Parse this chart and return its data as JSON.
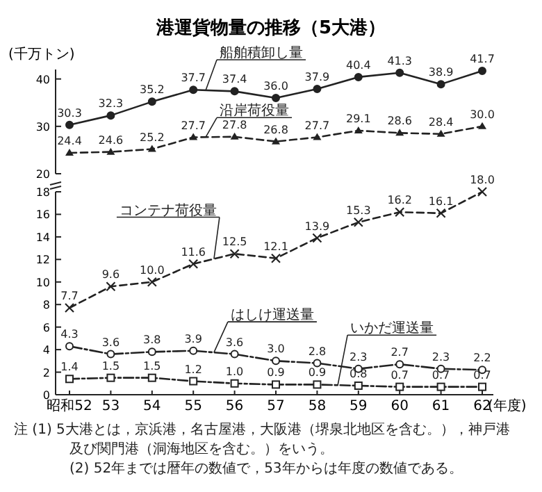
{
  "chart_data": [
    {
      "type": "line",
      "title": "港運貨物量の推移（5大港）",
      "ylabel": "(千万トン)",
      "categories": [
        null,
        null,
        null,
        null,
        null,
        null,
        null,
        null,
        null,
        null,
        null
      ],
      "ylim": [
        20,
        42
      ],
      "yticks": [
        20,
        30,
        40
      ],
      "tick_labels": "y",
      "series": [
        {
          "name": "船舶積卸し量",
          "color": "#222222",
          "marker": "circle",
          "line_style": "solid",
          "values": [
            30.3,
            32.3,
            35.2,
            37.7,
            37.4,
            36.0,
            37.9,
            40.4,
            41.3,
            38.9,
            41.7
          ],
          "value_labels": [
            "30.3",
            "32.3",
            "35.2",
            "37.7",
            "37.4",
            "36.0",
            "37.9",
            "40.4",
            "41.3",
            "38.9",
            "41.7"
          ]
        },
        {
          "name": "沿岸荷役量",
          "color": "#222222",
          "marker": "triangle",
          "line_style": "dashed",
          "values": [
            24.4,
            24.6,
            25.2,
            27.7,
            27.8,
            26.8,
            27.7,
            29.1,
            28.6,
            28.4,
            30.0
          ],
          "value_labels": [
            "24.4",
            "24.6",
            "25.2",
            "27.7",
            "27.8",
            "26.8",
            "27.7",
            "29.1",
            "28.6",
            "28.4",
            "30.0"
          ]
        }
      ]
    },
    {
      "type": "line",
      "xlabel": "(年度)",
      "categories": [
        "昭和52",
        "53",
        "54",
        "55",
        "56",
        "57",
        "58",
        "59",
        "60",
        "61",
        "62"
      ],
      "ylim": [
        0,
        18
      ],
      "yticks": [
        0,
        2,
        4,
        6,
        8,
        10,
        12,
        14,
        16,
        18
      ],
      "annotations": [
        "注 (1) 5大港とは，京浜港，名古屋港，大阪港（堺泉北地区を含む。），神戸港及び関門港（洞海地区を含む。）をいう。",
        "(2) 52年までは暦年の数値で，53年からは年度の数値である。"
      ],
      "series": [
        {
          "name": "コンテナ荷役量",
          "color": "#222222",
          "marker": "cross",
          "line_style": "dashed",
          "values": [
            7.7,
            9.6,
            10.0,
            11.6,
            12.5,
            12.1,
            13.9,
            15.3,
            16.2,
            16.1,
            18.0
          ],
          "value_labels": [
            "7.7",
            "9.6",
            "10.0",
            "11.6",
            "12.5",
            "12.1",
            "13.9",
            "15.3",
            "16.2",
            "16.1",
            "18.0"
          ]
        },
        {
          "name": "はしけ運送量",
          "color": "#222222",
          "marker": "circle",
          "line_style": "dashed",
          "values": [
            4.3,
            3.6,
            3.8,
            3.9,
            3.6,
            3.0,
            2.8,
            2.3,
            2.7,
            2.3,
            2.2
          ],
          "value_labels": [
            "4.3",
            "3.6",
            "3.8",
            "3.9",
            "3.6",
            "3.0",
            "2.8",
            "2.3",
            "2.7",
            "2.3",
            "2.2"
          ]
        },
        {
          "name": "いかだ運送量",
          "color": "#222222",
          "marker": "square",
          "line_style": "dashed",
          "values": [
            1.4,
            1.5,
            1.5,
            1.2,
            1.0,
            0.9,
            0.9,
            0.8,
            0.7,
            0.7,
            0.7
          ],
          "value_labels": [
            "1.4",
            "1.5",
            "1.5",
            "1.2",
            "1.0",
            "0.9",
            "0.9",
            "0.8",
            "0.7",
            "0.7",
            "0.7"
          ]
        }
      ]
    }
  ]
}
